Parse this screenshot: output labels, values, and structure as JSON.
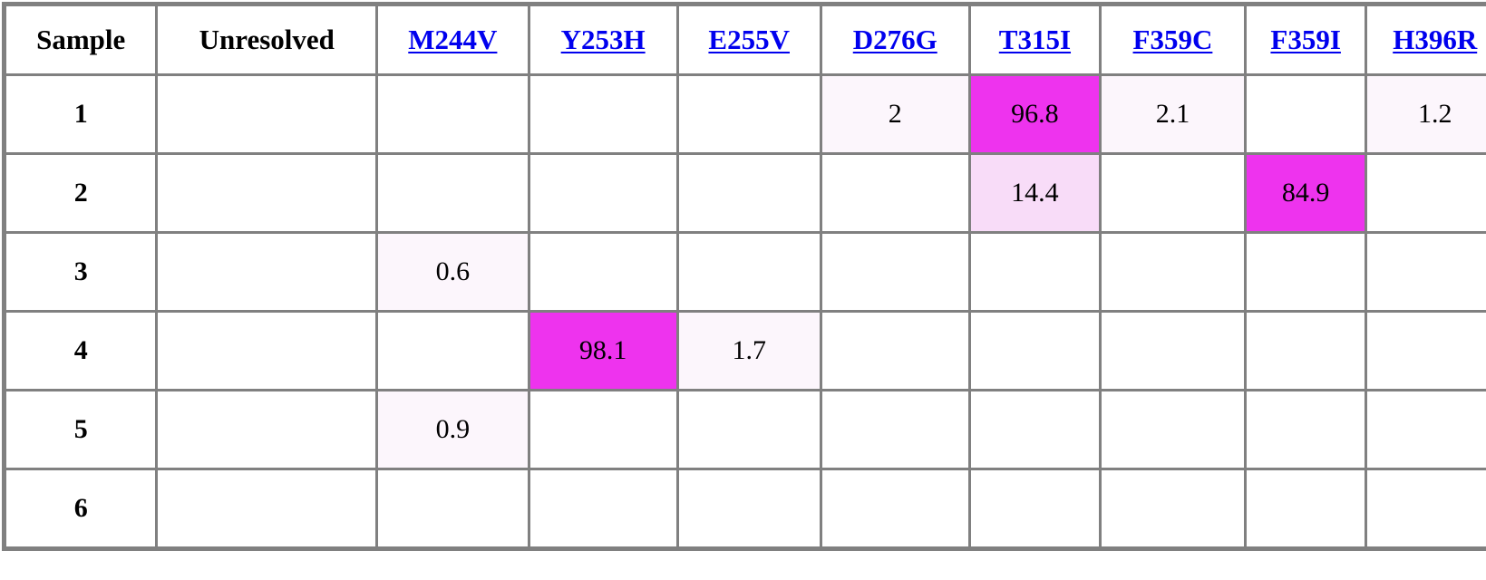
{
  "table": {
    "headers": [
      {
        "label": "Sample",
        "link": false
      },
      {
        "label": "Unresolved",
        "link": false
      },
      {
        "label": "M244V",
        "link": true
      },
      {
        "label": "Y253H",
        "link": true
      },
      {
        "label": "E255V",
        "link": true
      },
      {
        "label": "D276G",
        "link": true
      },
      {
        "label": "T315I",
        "link": true
      },
      {
        "label": "F359C",
        "link": true
      },
      {
        "label": "F359I",
        "link": true
      },
      {
        "label": "H396R",
        "link": true
      }
    ],
    "rows": [
      {
        "sample": "1",
        "cells": [
          "",
          "",
          "",
          "",
          "2",
          "96.8",
          "2.1",
          "",
          "1.2"
        ]
      },
      {
        "sample": "2",
        "cells": [
          "",
          "",
          "",
          "",
          "",
          "14.4",
          "",
          "84.9",
          ""
        ]
      },
      {
        "sample": "3",
        "cells": [
          "",
          "0.6",
          "",
          "",
          "",
          "",
          "",
          "",
          ""
        ]
      },
      {
        "sample": "4",
        "cells": [
          "",
          "",
          "98.1",
          "1.7",
          "",
          "",
          "",
          "",
          ""
        ]
      },
      {
        "sample": "5",
        "cells": [
          "",
          "0.9",
          "",
          "",
          "",
          "",
          "",
          "",
          ""
        ]
      },
      {
        "sample": "6",
        "cells": [
          "",
          "",
          "",
          "",
          "",
          "",
          "",
          "",
          ""
        ]
      }
    ]
  },
  "colors": {
    "grid_border": "#808080",
    "link": "#0000ee",
    "heat_high": "#ee33ee",
    "heat_medium": "#f8dcf8",
    "heat_low": "#fcf6fc"
  }
}
